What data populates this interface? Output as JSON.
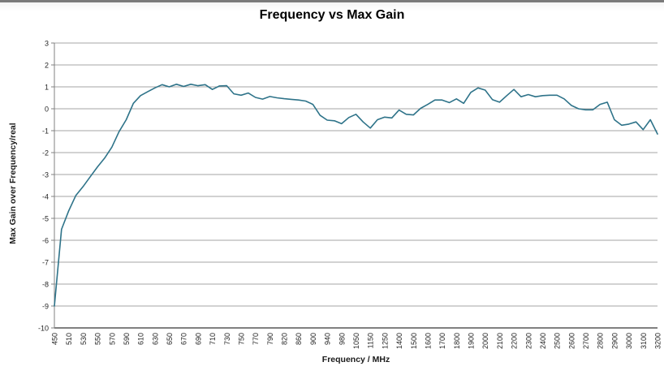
{
  "window": {
    "top_bar_color": "#7a7a7a",
    "background_color": "#fbfbfb"
  },
  "chart_data": {
    "type": "line",
    "title": "Frequency vs Max Gain",
    "xlabel": "Frequency / MHz",
    "ylabel": "Max Gain over Frequency/real",
    "ylim": [
      -10,
      3
    ],
    "yticks": [
      "3",
      "2",
      "1",
      "0",
      "-1",
      "-2",
      "-3",
      "-4",
      "-5",
      "-6",
      "-7",
      "-8",
      "-9",
      "-10"
    ],
    "grid": true,
    "legend_position": "none",
    "line_color": "#2E7389",
    "gridline_color": "#A6A6A6",
    "axis_color": "#808080",
    "x_tick_label_rotation_deg": -90,
    "categories": [
      "450",
      "510",
      "530",
      "550",
      "570",
      "590",
      "610",
      "630",
      "650",
      "670",
      "690",
      "710",
      "730",
      "750",
      "770",
      "790",
      "820",
      "860",
      "900",
      "940",
      "980",
      "1050",
      "1150",
      "1250",
      "1400",
      "1500",
      "1600",
      "1700",
      "1800",
      "1900",
      "2000",
      "2100",
      "2200",
      "2300",
      "2400",
      "2500",
      "2600",
      "2700",
      "2800",
      "2900",
      "3000",
      "3100",
      "3200"
    ],
    "points_note": "pairs of [category_position, gain_value]; half positions are unlabeled intermediate measurement points visible as small zigzags",
    "points": [
      [
        0,
        -9.0
      ],
      [
        0.5,
        -5.5
      ],
      [
        1,
        -4.65
      ],
      [
        1.5,
        -3.95
      ],
      [
        2,
        -3.55
      ],
      [
        2.5,
        -3.1
      ],
      [
        3,
        -2.65
      ],
      [
        3.5,
        -2.25
      ],
      [
        4,
        -1.75
      ],
      [
        4.5,
        -1.05
      ],
      [
        5,
        -0.5
      ],
      [
        5.5,
        0.25
      ],
      [
        6,
        0.6
      ],
      [
        6.5,
        0.78
      ],
      [
        7,
        0.95
      ],
      [
        7.5,
        1.1
      ],
      [
        8,
        1.0
      ],
      [
        8.5,
        1.12
      ],
      [
        9,
        1.02
      ],
      [
        9.5,
        1.12
      ],
      [
        10,
        1.05
      ],
      [
        10.5,
        1.1
      ],
      [
        11,
        0.88
      ],
      [
        11.5,
        1.04
      ],
      [
        12,
        1.05
      ],
      [
        12.5,
        0.68
      ],
      [
        13,
        0.62
      ],
      [
        13.5,
        0.72
      ],
      [
        14,
        0.52
      ],
      [
        14.5,
        0.44
      ],
      [
        15,
        0.56
      ],
      [
        15.5,
        0.5
      ],
      [
        16,
        0.46
      ],
      [
        16.5,
        0.43
      ],
      [
        17,
        0.4
      ],
      [
        17.5,
        0.35
      ],
      [
        18,
        0.2
      ],
      [
        18.5,
        -0.3
      ],
      [
        19,
        -0.52
      ],
      [
        19.5,
        -0.55
      ],
      [
        20,
        -0.68
      ],
      [
        20.5,
        -0.4
      ],
      [
        21,
        -0.25
      ],
      [
        21.5,
        -0.6
      ],
      [
        22,
        -0.88
      ],
      [
        22.5,
        -0.5
      ],
      [
        23,
        -0.38
      ],
      [
        23.5,
        -0.42
      ],
      [
        24,
        -0.06
      ],
      [
        24.5,
        -0.25
      ],
      [
        25,
        -0.28
      ],
      [
        25.5,
        0.02
      ],
      [
        26,
        0.2
      ],
      [
        26.5,
        0.4
      ],
      [
        27,
        0.4
      ],
      [
        27.5,
        0.28
      ],
      [
        28,
        0.45
      ],
      [
        28.5,
        0.25
      ],
      [
        29,
        0.75
      ],
      [
        29.5,
        0.95
      ],
      [
        30,
        0.85
      ],
      [
        30.5,
        0.42
      ],
      [
        31,
        0.3
      ],
      [
        31.5,
        0.6
      ],
      [
        32,
        0.88
      ],
      [
        32.5,
        0.55
      ],
      [
        33,
        0.65
      ],
      [
        33.5,
        0.55
      ],
      [
        34,
        0.6
      ],
      [
        34.5,
        0.62
      ],
      [
        35,
        0.62
      ],
      [
        35.5,
        0.45
      ],
      [
        36,
        0.15
      ],
      [
        36.5,
        0.0
      ],
      [
        37,
        -0.05
      ],
      [
        37.5,
        -0.05
      ],
      [
        38,
        0.2
      ],
      [
        38.5,
        0.3
      ],
      [
        39,
        -0.5
      ],
      [
        39.5,
        -0.75
      ],
      [
        40,
        -0.7
      ],
      [
        40.5,
        -0.6
      ],
      [
        41,
        -0.95
      ],
      [
        41.5,
        -0.5
      ],
      [
        42,
        -1.15
      ]
    ]
  }
}
